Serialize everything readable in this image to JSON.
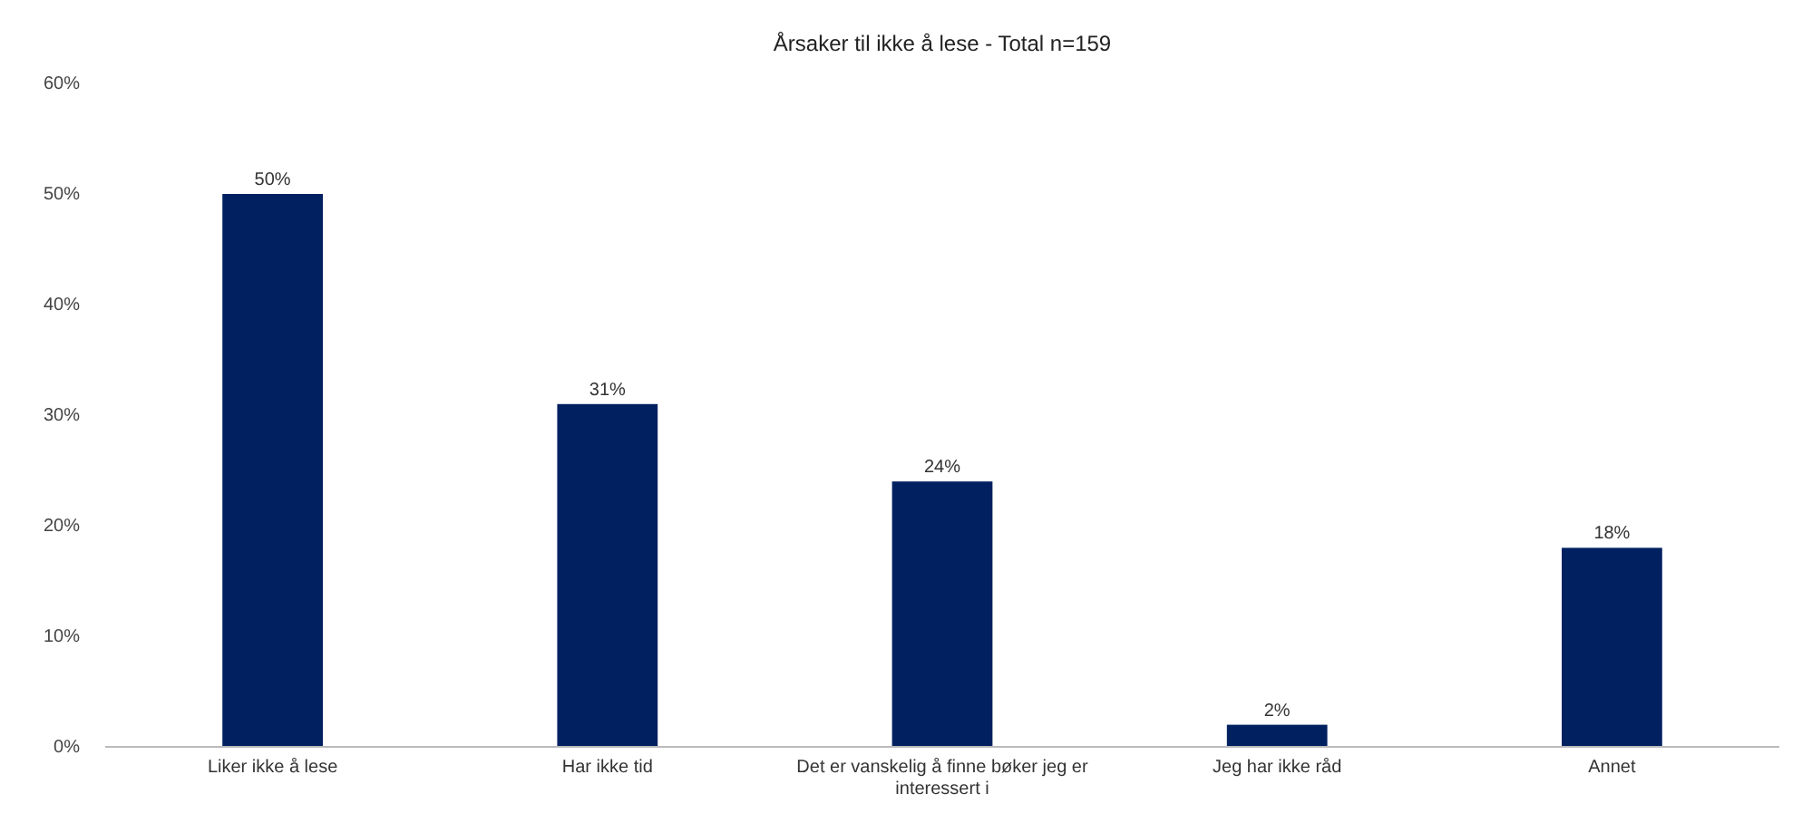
{
  "chart_data": {
    "type": "bar",
    "title": "Årsaker til ikke å lese - Total n=159",
    "categories": [
      "Liker ikke å lese",
      "Har ikke tid",
      "Det er vanskelig å finne bøker jeg er interessert i",
      "Jeg har ikke råd",
      "Annet"
    ],
    "values": [
      50,
      31,
      24,
      2,
      18
    ],
    "value_labels": [
      "50%",
      "31%",
      "24%",
      "2%",
      "18%"
    ],
    "color": "#002060",
    "ylim": [
      0,
      60
    ],
    "yticks": [
      {
        "value": 0,
        "label": "0%"
      },
      {
        "value": 10,
        "label": "10%"
      },
      {
        "value": 20,
        "label": "20%"
      },
      {
        "value": 30,
        "label": "30%"
      },
      {
        "value": 40,
        "label": "40%"
      },
      {
        "value": 50,
        "label": "50%"
      },
      {
        "value": 60,
        "label": "60%"
      }
    ],
    "grid": false
  }
}
